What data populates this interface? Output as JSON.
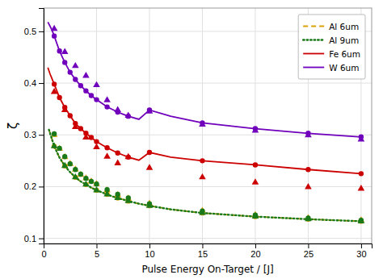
{
  "chart_data": {
    "type": "line",
    "xlabel": "Pulse Energy On-Target / [J]",
    "ylabel": "ζ",
    "xlim": [
      0,
      31
    ],
    "ylim": [
      0.09,
      0.545
    ],
    "xticks": [
      0,
      5,
      10,
      15,
      20,
      25,
      30
    ],
    "yticks": [
      0.1,
      0.2,
      0.3,
      0.4,
      0.5
    ],
    "grid": true,
    "legend": "upper right",
    "series": [
      {
        "name": "Al 6um",
        "type": "line",
        "line_style": "dashed",
        "color": "#DAA000",
        "x": [
          0.5,
          1.0,
          1.5,
          2.0,
          2.5,
          3.0,
          3.5,
          4.0,
          4.5,
          5.0,
          5.5,
          6.0,
          6.5,
          7.0,
          7.5,
          8.0,
          9.0,
          10.0,
          12.0,
          15.0,
          20.0,
          25.0,
          30.0
        ],
        "values": [
          0.31,
          0.278,
          0.256,
          0.24,
          0.228,
          0.218,
          0.21,
          0.204,
          0.198,
          0.193,
          0.189,
          0.185,
          0.181,
          0.178,
          0.175,
          0.172,
          0.167,
          0.163,
          0.156,
          0.149,
          0.142,
          0.137,
          0.133
        ]
      },
      {
        "type": "scatter",
        "marker": "circle",
        "color": "#DAA000",
        "x": [
          1.0,
          2.0,
          3.0,
          4.0,
          5.0,
          6.0,
          7.0,
          8.0,
          10.0,
          15.0,
          20.0,
          25.0,
          30.0
        ],
        "values": [
          0.278,
          0.24,
          0.218,
          0.204,
          0.193,
          0.185,
          0.178,
          0.172,
          0.163,
          0.149,
          0.142,
          0.137,
          0.133
        ]
      },
      {
        "type": "scatter",
        "marker": "triangle",
        "color": "#DAA000",
        "x": [
          1.0,
          1.5,
          2.0,
          2.5,
          3.0,
          3.5,
          4.0,
          4.5,
          5.0,
          6.0,
          7.0,
          8.0,
          10.0,
          15.0,
          20.0,
          25.0,
          30.0
        ],
        "values": [
          0.3,
          0.273,
          0.257,
          0.244,
          0.233,
          0.223,
          0.216,
          0.21,
          0.205,
          0.193,
          0.184,
          0.177,
          0.167,
          0.153,
          0.145,
          0.139,
          0.135
        ]
      },
      {
        "name": "Al 9um",
        "type": "line",
        "line_style": "dotted",
        "color": "#1A7A1A",
        "x": [
          0.5,
          1.0,
          1.5,
          2.0,
          2.5,
          3.0,
          3.5,
          4.0,
          4.5,
          5.0,
          5.5,
          6.0,
          6.5,
          7.0,
          7.5,
          8.0,
          9.0,
          10.0,
          12.0,
          15.0,
          20.0,
          25.0,
          30.0
        ],
        "values": [
          0.31,
          0.278,
          0.256,
          0.24,
          0.228,
          0.218,
          0.21,
          0.204,
          0.198,
          0.193,
          0.189,
          0.185,
          0.181,
          0.178,
          0.175,
          0.172,
          0.167,
          0.163,
          0.156,
          0.149,
          0.142,
          0.137,
          0.133
        ]
      },
      {
        "type": "scatter",
        "marker": "circle",
        "color": "#1A7A1A",
        "x": [
          1.0,
          1.5,
          2.0,
          2.5,
          3.0,
          3.5,
          4.0,
          4.5,
          5.0,
          6.0,
          7.0,
          8.0,
          10.0,
          15.0,
          20.0,
          25.0,
          30.0
        ],
        "values": [
          0.302,
          0.274,
          0.258,
          0.244,
          0.233,
          0.224,
          0.216,
          0.21,
          0.205,
          0.194,
          0.185,
          0.178,
          0.167,
          0.153,
          0.145,
          0.139,
          0.135
        ]
      },
      {
        "type": "scatter",
        "marker": "triangle",
        "color": "#1A7A1A",
        "x": [
          1.0,
          2.0,
          3.0,
          4.0,
          5.0,
          6.0,
          7.0,
          8.0,
          10.0,
          15.0,
          20.0,
          25.0,
          30.0
        ],
        "values": [
          0.278,
          0.24,
          0.218,
          0.204,
          0.193,
          0.185,
          0.178,
          0.172,
          0.163,
          0.149,
          0.142,
          0.137,
          0.133
        ]
      },
      {
        "name": "Fe 6um",
        "type": "line",
        "line_style": "solid",
        "color": "#CC0000",
        "x": [
          0.4,
          0.6,
          0.8,
          1.0,
          1.5,
          2.0,
          2.5,
          3.0,
          3.5,
          4.0,
          4.5,
          5.0,
          5.5,
          6.0,
          6.5,
          7.0,
          7.5,
          8.0,
          9.0,
          10.0,
          12.0,
          15.0,
          20.0,
          25.0,
          30.0
        ],
        "values": [
          0.43,
          0.418,
          0.408,
          0.398,
          0.372,
          0.353,
          0.337,
          0.322,
          0.312,
          0.303,
          0.295,
          0.287,
          0.281,
          0.275,
          0.27,
          0.265,
          0.261,
          0.257,
          0.251,
          0.266,
          0.257,
          0.25,
          0.242,
          0.233,
          0.225
        ]
      },
      {
        "type": "scatter",
        "marker": "circle",
        "color": "#CC0000",
        "x": [
          1.0,
          1.5,
          2.0,
          2.5,
          3.0,
          3.5,
          4.0,
          4.5,
          5.0,
          6.0,
          7.0,
          8.0,
          10.0,
          15.0,
          20.0,
          25.0,
          30.0
        ],
        "values": [
          0.398,
          0.372,
          0.353,
          0.337,
          0.322,
          0.312,
          0.303,
          0.295,
          0.287,
          0.275,
          0.265,
          0.257,
          0.266,
          0.25,
          0.242,
          0.233,
          0.225
        ]
      },
      {
        "type": "scatter",
        "marker": "triangle",
        "color": "#CC0000",
        "x": [
          1.0,
          2.0,
          3.0,
          4.0,
          5.0,
          6.0,
          7.0,
          8.0,
          10.0,
          15.0,
          20.0,
          25.0,
          30.0
        ],
        "values": [
          0.383,
          0.348,
          0.315,
          0.295,
          0.276,
          0.258,
          0.245,
          0.257,
          0.236,
          0.218,
          0.208,
          0.199,
          0.196
        ]
      },
      {
        "name": "W 6um",
        "type": "line",
        "line_style": "solid",
        "color": "#7000BB",
        "x": [
          0.4,
          0.6,
          0.8,
          1.0,
          1.5,
          2.0,
          2.5,
          3.0,
          3.5,
          4.0,
          4.5,
          5.0,
          5.5,
          6.0,
          6.5,
          7.0,
          7.5,
          8.0,
          9.0,
          10.0,
          12.0,
          15.0,
          20.0,
          25.0,
          30.0
        ],
        "values": [
          0.518,
          0.51,
          0.502,
          0.491,
          0.462,
          0.44,
          0.421,
          0.407,
          0.395,
          0.385,
          0.376,
          0.368,
          0.361,
          0.354,
          0.349,
          0.344,
          0.34,
          0.336,
          0.33,
          0.348,
          0.336,
          0.323,
          0.312,
          0.303,
          0.296
        ]
      },
      {
        "type": "scatter",
        "marker": "circle",
        "color": "#7000BB",
        "x": [
          1.0,
          1.5,
          2.0,
          2.5,
          3.0,
          3.5,
          4.0,
          4.5,
          5.0,
          6.0,
          7.0,
          8.0,
          10.0,
          15.0,
          20.0,
          25.0,
          30.0
        ],
        "values": [
          0.491,
          0.462,
          0.44,
          0.421,
          0.407,
          0.395,
          0.385,
          0.376,
          0.368,
          0.354,
          0.344,
          0.336,
          0.348,
          0.323,
          0.312,
          0.303,
          0.296
        ]
      },
      {
        "type": "scatter",
        "marker": "triangle",
        "color": "#7000BB",
        "x": [
          1.0,
          2.0,
          3.0,
          4.0,
          5.0,
          6.0,
          7.0,
          8.0,
          10.0,
          15.0,
          20.0,
          25.0,
          30.0
        ],
        "values": [
          0.505,
          0.46,
          0.433,
          0.414,
          0.396,
          0.367,
          0.348,
          0.337,
          0.345,
          0.32,
          0.308,
          0.299,
          0.291
        ]
      }
    ]
  }
}
